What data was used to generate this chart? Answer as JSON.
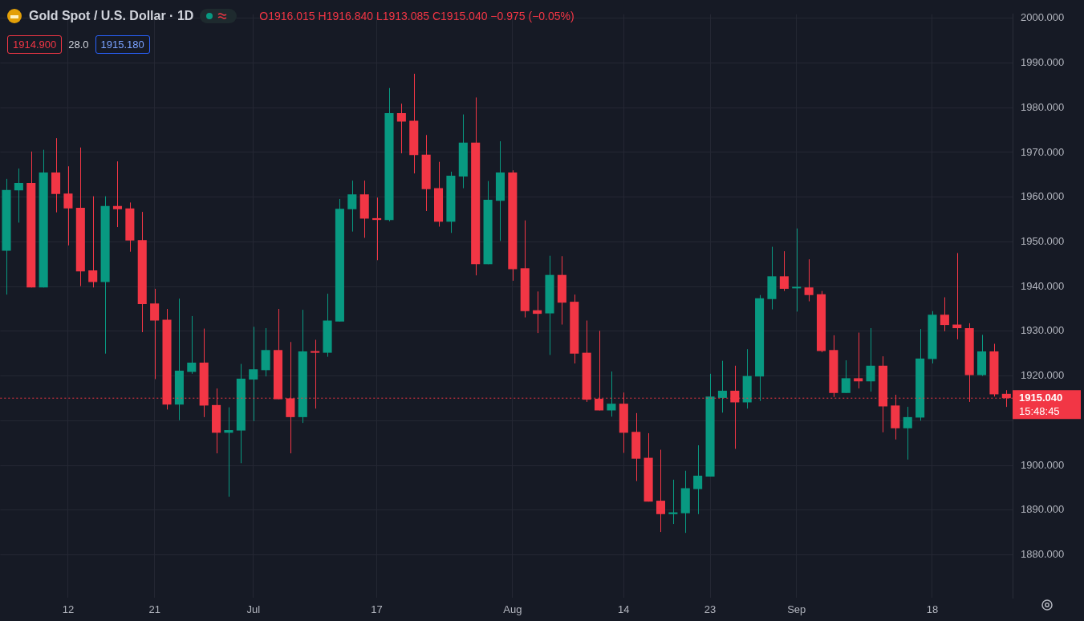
{
  "chart_data": {
    "type": "candlestick",
    "title": "Gold Spot / U.S. Dollar · 1D",
    "categories": [
      null,
      null,
      null,
      null,
      null,
      "12",
      null,
      null,
      null,
      null,
      null,
      null,
      "21",
      null,
      null,
      null,
      null,
      null,
      null,
      null,
      "Jul",
      null,
      null,
      null,
      null,
      null,
      null,
      null,
      null,
      null,
      "17",
      null,
      null,
      null,
      null,
      null,
      null,
      null,
      null,
      null,
      null,
      "Aug",
      null,
      null,
      null,
      null,
      null,
      null,
      null,
      null,
      "14",
      null,
      null,
      null,
      null,
      null,
      null,
      "23",
      null,
      null,
      null,
      null,
      null,
      null,
      "Sep",
      null,
      null,
      null,
      null,
      null,
      null,
      null,
      null,
      null,
      null,
      "18",
      null,
      null,
      null,
      null,
      null,
      null
    ],
    "ohlc": [
      [
        1948.0,
        1964.1,
        1938.2,
        1961.6
      ],
      [
        1961.5,
        1966.4,
        1954.3,
        1963.2
      ],
      [
        1963.2,
        1970.2,
        1939.8,
        1939.8
      ],
      [
        1939.8,
        1970.6,
        1939.8,
        1965.5
      ],
      [
        1965.5,
        1973.2,
        1956.6,
        1960.7
      ],
      [
        1960.8,
        1966.9,
        1949.2,
        1957.5
      ],
      [
        1957.6,
        1971.1,
        1940.1,
        1943.4
      ],
      [
        1943.6,
        1960.2,
        1939.8,
        1941.0
      ],
      [
        1941.0,
        1960.2,
        1925.0,
        1958.0
      ],
      [
        1958.0,
        1968.0,
        1953.3,
        1957.3
      ],
      [
        1957.5,
        1958.8,
        1947.8,
        1950.3
      ],
      [
        1950.4,
        1956.7,
        1929.8,
        1936.1
      ],
      [
        1936.2,
        1939.5,
        1919.3,
        1932.4
      ],
      [
        1932.6,
        1935.0,
        1912.5,
        1913.6
      ],
      [
        1913.6,
        1937.3,
        1910.1,
        1921.2
      ],
      [
        1920.9,
        1933.4,
        1920.5,
        1923.0
      ],
      [
        1923.0,
        1930.6,
        1910.8,
        1913.4
      ],
      [
        1913.5,
        1917.2,
        1902.7,
        1907.3
      ],
      [
        1907.3,
        1913.0,
        1893.0,
        1907.9
      ],
      [
        1907.8,
        1922.7,
        1900.5,
        1919.4
      ],
      [
        1919.2,
        1931.0,
        1909.9,
        1921.5
      ],
      [
        1921.3,
        1930.7,
        1919.9,
        1925.8
      ],
      [
        1925.8,
        1935.0,
        1914.8,
        1914.8
      ],
      [
        1915.0,
        1927.6,
        1902.7,
        1910.8
      ],
      [
        1910.8,
        1934.8,
        1909.5,
        1925.5
      ],
      [
        1925.5,
        1928.1,
        1912.7,
        1925.2
      ],
      [
        1925.2,
        1938.4,
        1924.3,
        1932.4
      ],
      [
        1932.2,
        1959.6,
        1932.2,
        1957.4
      ],
      [
        1957.3,
        1963.7,
        1952.3,
        1960.6
      ],
      [
        1960.6,
        1963.7,
        1950.9,
        1955.2
      ],
      [
        1955.3,
        1959.9,
        1945.9,
        1954.9
      ],
      [
        1954.9,
        1984.4,
        1954.6,
        1978.8
      ],
      [
        1978.8,
        1980.9,
        1969.8,
        1976.9
      ],
      [
        1977.1,
        1987.6,
        1965.3,
        1969.4
      ],
      [
        1969.5,
        1973.9,
        1956.9,
        1961.8
      ],
      [
        1962.0,
        1967.9,
        1953.4,
        1954.5
      ],
      [
        1954.5,
        1965.7,
        1952.0,
        1964.8
      ],
      [
        1964.6,
        1978.5,
        1962.0,
        1972.2
      ],
      [
        1972.2,
        1982.3,
        1942.5,
        1945.0
      ],
      [
        1945.0,
        1963.6,
        1945.0,
        1959.4
      ],
      [
        1959.2,
        1972.5,
        1950.2,
        1965.5
      ],
      [
        1965.5,
        1966.0,
        1941.3,
        1943.9
      ],
      [
        1944.1,
        1954.8,
        1933.1,
        1934.5
      ],
      [
        1934.7,
        1938.9,
        1929.6,
        1933.9
      ],
      [
        1934.0,
        1946.9,
        1924.7,
        1942.6
      ],
      [
        1942.6,
        1946.8,
        1931.5,
        1936.4
      ],
      [
        1936.6,
        1938.2,
        1922.8,
        1925.0
      ],
      [
        1925.2,
        1932.4,
        1914.2,
        1914.7
      ],
      [
        1914.9,
        1930.1,
        1912.3,
        1912.3
      ],
      [
        1912.3,
        1921.0,
        1910.9,
        1913.8
      ],
      [
        1913.8,
        1916.3,
        1902.8,
        1907.3
      ],
      [
        1907.5,
        1911.7,
        1896.5,
        1901.5
      ],
      [
        1901.7,
        1907.2,
        1891.9,
        1891.9
      ],
      [
        1892.1,
        1903.5,
        1885.1,
        1889.1
      ],
      [
        1889.1,
        1896.8,
        1886.9,
        1889.5
      ],
      [
        1889.3,
        1898.8,
        1884.9,
        1894.9
      ],
      [
        1894.7,
        1904.5,
        1889.1,
        1897.7
      ],
      [
        1897.5,
        1920.5,
        1897.5,
        1915.4
      ],
      [
        1915.1,
        1923.4,
        1911.8,
        1916.7
      ],
      [
        1916.7,
        1922.3,
        1903.7,
        1914.1
      ],
      [
        1914.1,
        1926.0,
        1912.7,
        1920.0
      ],
      [
        1919.9,
        1938.1,
        1914.4,
        1937.4
      ],
      [
        1937.2,
        1948.9,
        1934.9,
        1942.3
      ],
      [
        1942.3,
        1947.9,
        1939.0,
        1939.5
      ],
      [
        1939.6,
        1953.0,
        1934.4,
        1939.8
      ],
      [
        1939.8,
        1946.1,
        1936.7,
        1938.1
      ],
      [
        1938.3,
        1939.0,
        1925.3,
        1925.6
      ],
      [
        1925.8,
        1929.1,
        1915.3,
        1916.2
      ],
      [
        1916.2,
        1923.5,
        1916.2,
        1919.5
      ],
      [
        1919.5,
        1929.7,
        1917.2,
        1918.8
      ],
      [
        1918.8,
        1930.7,
        1916.5,
        1922.3
      ],
      [
        1922.3,
        1924.4,
        1907.4,
        1913.2
      ],
      [
        1913.4,
        1915.8,
        1905.8,
        1908.3
      ],
      [
        1908.3,
        1913.1,
        1901.3,
        1910.8
      ],
      [
        1910.7,
        1930.5,
        1910.0,
        1923.9
      ],
      [
        1923.8,
        1934.5,
        1922.8,
        1933.7
      ],
      [
        1933.7,
        1937.6,
        1930.0,
        1931.4
      ],
      [
        1931.5,
        1947.5,
        1928.2,
        1930.7
      ],
      [
        1930.7,
        1931.8,
        1914.2,
        1920.2
      ],
      [
        1920.2,
        1929.2,
        1920.0,
        1925.5
      ],
      [
        1925.5,
        1927.2,
        1915.4,
        1915.9
      ],
      [
        1916.015,
        1916.84,
        1913.085,
        1915.04
      ]
    ],
    "colors": [
      "#089981",
      "#089981",
      "#f23645",
      "#089981",
      "#f23645",
      "#f23645",
      "#f23645",
      "#f23645",
      "#089981",
      "#f23645",
      "#f23645",
      "#f23645",
      "#f23645",
      "#f23645",
      "#089981",
      "#089981",
      "#f23645",
      "#f23645",
      "#089981",
      "#089981",
      "#089981",
      "#089981",
      "#f23645",
      "#f23645",
      "#089981",
      "#f23645",
      "#089981",
      "#089981",
      "#089981",
      "#f23645",
      "#f23645",
      "#089981",
      "#f23645",
      "#f23645",
      "#f23645",
      "#f23645",
      "#089981",
      "#089981",
      "#f23645",
      "#089981",
      "#089981",
      "#f23645",
      "#f23645",
      "#f23645",
      "#089981",
      "#f23645",
      "#f23645",
      "#f23645",
      "#f23645",
      "#089981",
      "#f23645",
      "#f23645",
      "#f23645",
      "#f23645",
      "#089981",
      "#089981",
      "#089981",
      "#089981",
      "#089981",
      "#f23645",
      "#089981",
      "#089981",
      "#089981",
      "#f23645",
      "#089981",
      "#f23645",
      "#f23645",
      "#f23645",
      "#089981",
      "#f23645",
      "#089981",
      "#f23645",
      "#f23645",
      "#089981",
      "#089981",
      "#089981",
      "#f23645",
      "#f23645",
      "#f23645",
      "#089981",
      "#f23645",
      "#f23645"
    ],
    "ylim": [
      1870.4,
      2000.9
    ],
    "yticks": [
      {
        "value": 1880,
        "label": "1880.000"
      },
      {
        "value": 1890,
        "label": "1890.000"
      },
      {
        "value": 1900,
        "label": "1900.000"
      },
      {
        "value": 1910,
        "label": null
      },
      {
        "value": 1920,
        "label": "1920.000"
      },
      {
        "value": 1930,
        "label": "1930.000"
      },
      {
        "value": 1940,
        "label": "1940.000"
      },
      {
        "value": 1950,
        "label": "1950.000"
      },
      {
        "value": 1960,
        "label": "1960.000"
      },
      {
        "value": 1970,
        "label": "1970.000"
      },
      {
        "value": 1980,
        "label": "1980.000"
      },
      {
        "value": 1990,
        "label": "1990.000"
      },
      {
        "value": 2000,
        "label": "2000.000"
      }
    ],
    "grid": true,
    "ref_lines": [
      {
        "axis": "y",
        "value": 1915.04,
        "label": "1915.040",
        "color": "#f23645",
        "line_style": "dotted"
      }
    ],
    "annotations": [
      "O1916.015 H1916.840 L1913.085 C1915.040 −0.975 (−0.05%)",
      "1914.900",
      "28.0",
      "1915.180",
      "15:48:45"
    ]
  }
}
